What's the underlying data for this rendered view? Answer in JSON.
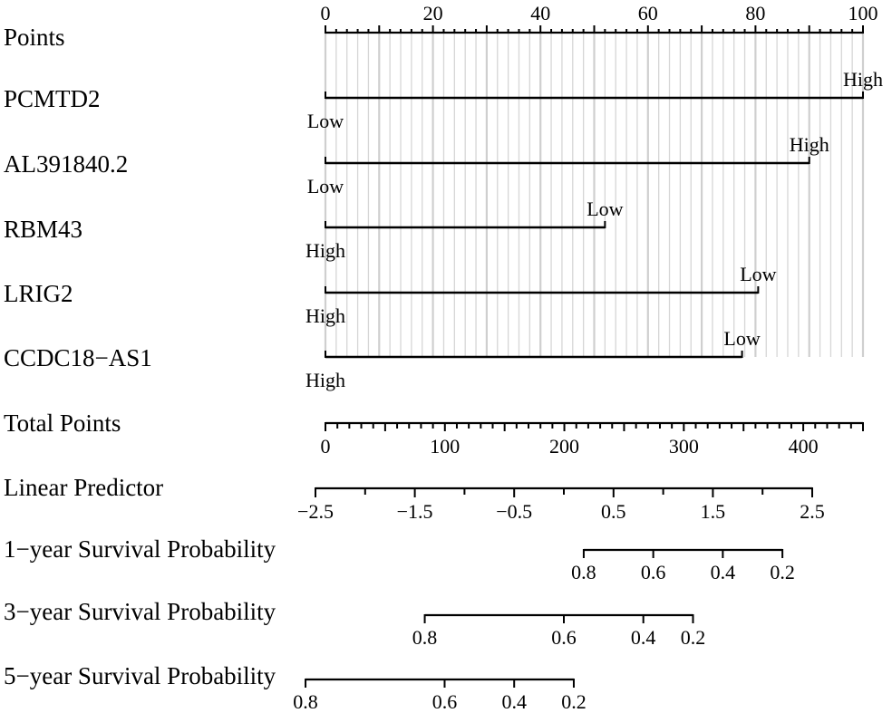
{
  "chart_data": {
    "type": "nomogram",
    "title": "",
    "rows": [
      {
        "label": "Points",
        "kind": "axis",
        "range": [
          0,
          100
        ],
        "tick_labels": [
          "0",
          "20",
          "40",
          "60",
          "80",
          "100"
        ]
      },
      {
        "label": "PCMTD2",
        "kind": "variable",
        "start": {
          "label": "Low",
          "points": 0
        },
        "end": {
          "label": "High",
          "points": 100
        }
      },
      {
        "label": "AL391840.2",
        "kind": "variable",
        "start": {
          "label": "Low",
          "points": 0
        },
        "end": {
          "label": "High",
          "points": 90
        }
      },
      {
        "label": "RBM43",
        "kind": "variable",
        "start": {
          "label": "High",
          "points": 0
        },
        "end": {
          "label": "Low",
          "points": 52
        }
      },
      {
        "label": "LRIG2",
        "kind": "variable",
        "start": {
          "label": "High",
          "points": 0
        },
        "end": {
          "label": "Low",
          "points": 80.5
        }
      },
      {
        "label": "CCDC18−AS1",
        "kind": "variable",
        "start": {
          "label": "High",
          "points": 0
        },
        "end": {
          "label": "Low",
          "points": 77.5
        }
      },
      {
        "label": "Total Points",
        "kind": "axis",
        "range": [
          0,
          450
        ],
        "tick_labels": [
          "0",
          "100",
          "200",
          "300",
          "400"
        ]
      },
      {
        "label": "Linear Predictor",
        "kind": "axis",
        "range": [
          -2.5,
          2.5
        ],
        "tick_labels": [
          "−2.5",
          "−1.5",
          "−0.5",
          "0.5",
          "1.5",
          "2.5"
        ]
      },
      {
        "label": "1−year Survival Probability",
        "kind": "probability",
        "values": [
          0.8,
          0.6,
          0.4,
          0.2
        ],
        "tick_labels": [
          "0.8",
          "0.6",
          "0.4",
          "0.2"
        ],
        "linear_predictor_at": [
          0.2,
          0.9,
          1.6,
          2.2
        ]
      },
      {
        "label": "3−year Survival Probability",
        "kind": "probability",
        "values": [
          0.8,
          0.6,
          0.4,
          0.2
        ],
        "tick_labels": [
          "0.8",
          "0.6",
          "0.4",
          "0.2"
        ],
        "linear_predictor_at": [
          -1.4,
          0.0,
          0.8,
          1.3
        ]
      },
      {
        "label": "5−year Survival Probability",
        "kind": "probability",
        "values": [
          0.8,
          0.6,
          0.4,
          0.2
        ],
        "tick_labels": [
          "0.8",
          "0.6",
          "0.4",
          "0.2"
        ],
        "linear_predictor_at": [
          -2.6,
          -1.2,
          -0.5,
          0.1
        ]
      }
    ]
  }
}
